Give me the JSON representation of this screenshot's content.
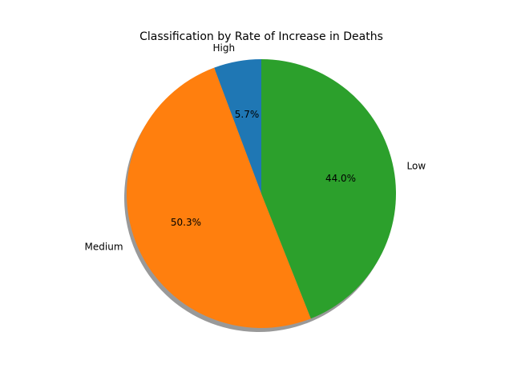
{
  "chart_data": {
    "type": "pie",
    "title": "Classification by Rate of Increase in Deaths",
    "categories": [
      "High",
      "Medium",
      "Low"
    ],
    "values": [
      5.7,
      50.3,
      44.0
    ],
    "value_labels": [
      "5.7%",
      "50.3%",
      "44.0%"
    ],
    "colors": [
      "#1f77b4",
      "#ff7f0e",
      "#2ca02c"
    ],
    "start_angle_deg": 90,
    "direction": "counterclockwise",
    "shadow": true,
    "legend": "none"
  }
}
